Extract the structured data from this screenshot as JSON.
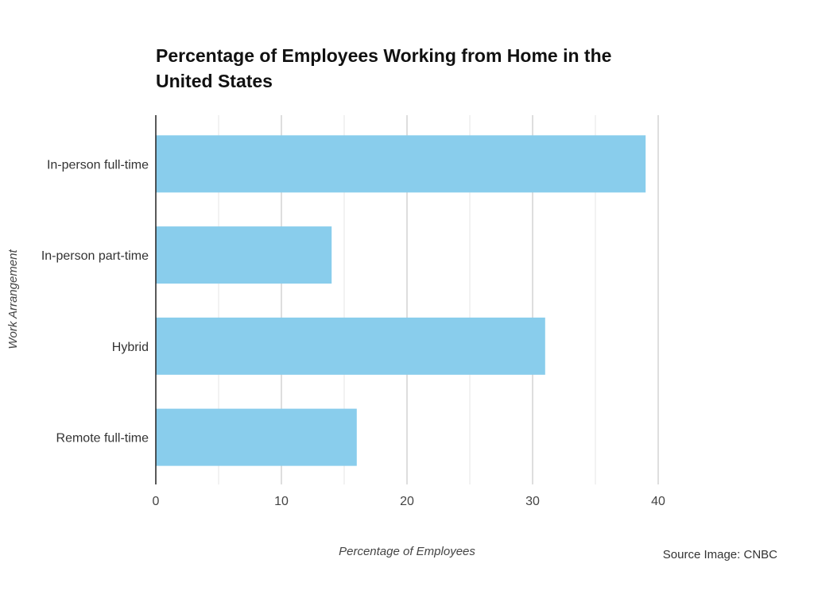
{
  "chart_data": {
    "type": "bar",
    "orientation": "horizontal",
    "title": "Percentage of Employees Working from Home in the United States",
    "xlabel": "Percentage of Employees",
    "ylabel": "Work Arrangement",
    "categories": [
      "In-person full-time",
      "In-person part-time",
      "Hybrid",
      "Remote full-time"
    ],
    "values": [
      39,
      14,
      31,
      16
    ],
    "xlim": [
      0,
      40
    ],
    "xticks": [
      0,
      10,
      20,
      30,
      40
    ],
    "grid": true,
    "bar_color": "#89CDEC"
  },
  "source": "Source Image: CNBC"
}
